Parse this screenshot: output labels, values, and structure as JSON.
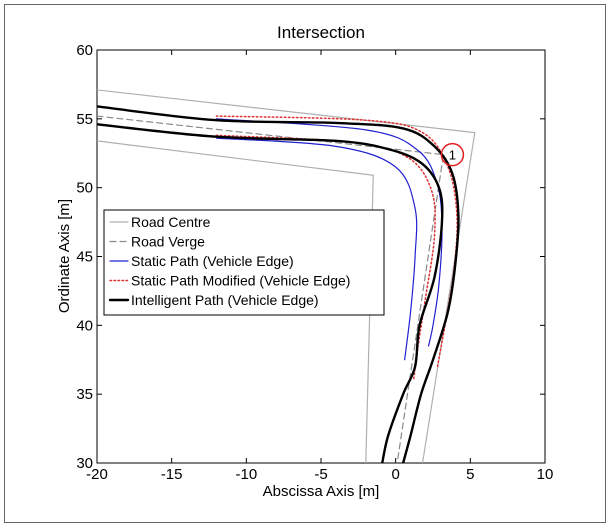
{
  "chart_data": {
    "type": "line",
    "title": "Intersection",
    "xlabel": "Abscissa Axis [m]",
    "ylabel": "Ordinate Axis [m]",
    "xlim": [
      -20,
      10
    ],
    "ylim": [
      30,
      60
    ],
    "xticks": [
      -20,
      -15,
      -10,
      -5,
      0,
      5,
      10
    ],
    "yticks": [
      30,
      35,
      40,
      45,
      50,
      55,
      60
    ],
    "grid": false,
    "legend_position": "left",
    "annotation": "1",
    "annotation_point": [
      3.8,
      52.4
    ],
    "series": [
      {
        "name": "Road Centre",
        "color": "#b0b0b0",
        "style": "solid",
        "lines": [
          [
            [
              -20,
              57.1
            ],
            [
              5.3,
              54
            ],
            [
              1.8,
              30
            ]
          ],
          [
            [
              -20,
              53.4
            ],
            [
              -1.5,
              50.9
            ],
            [
              -2,
              30
            ]
          ]
        ]
      },
      {
        "name": "Road Verge",
        "color": "#8a8a8a",
        "style": "dashed",
        "lines": [
          [
            [
              -20,
              55.2
            ],
            [
              3.2,
              52.4
            ],
            [
              0.1,
              30
            ]
          ]
        ]
      },
      {
        "name": "Static Path (Vehicle Edge)",
        "color": "#2020d0",
        "style": "solid",
        "lines": [
          [
            [
              -12,
              55
            ],
            [
              -2,
              54.2
            ],
            [
              1.5,
              52.7
            ],
            [
              2.8,
              50.2
            ],
            [
              3.1,
              47
            ],
            [
              2.9,
              43
            ],
            [
              2.5,
              40
            ],
            [
              2.2,
              38.5
            ]
          ],
          [
            [
              -12,
              53.6
            ],
            [
              -4,
              53
            ],
            [
              0,
              51.5
            ],
            [
              1.3,
              48.5
            ],
            [
              1.3,
              45
            ],
            [
              1.0,
              41
            ],
            [
              0.6,
              37.5
            ]
          ]
        ]
      },
      {
        "name": "Static Path Modified (Vehicle Edge)",
        "color": "#e03030",
        "style": "dotted",
        "lines": [
          [
            [
              -12,
              55.2
            ],
            [
              -2,
              54.9
            ],
            [
              1.8,
              54
            ],
            [
              3.5,
              51.5
            ],
            [
              4.1,
              48
            ],
            [
              3.9,
              44
            ],
            [
              3.3,
              40
            ],
            [
              2.8,
              37
            ]
          ],
          [
            [
              -12,
              53.8
            ],
            [
              -3,
              53.3
            ],
            [
              0.8,
              52.2
            ],
            [
              2.4,
              49.8
            ],
            [
              2.6,
              46.5
            ],
            [
              2.0,
              42
            ],
            [
              1.5,
              38.5
            ],
            [
              1.2,
              36
            ]
          ]
        ]
      },
      {
        "name": "Intelligent Path (Vehicle Edge)",
        "color": "#000000",
        "style": "solid",
        "lines": [
          [
            [
              -20,
              55.9
            ],
            [
              -12,
              54.9
            ],
            [
              -4,
              54.7
            ],
            [
              0.5,
              54.3
            ],
            [
              2.6,
              53
            ],
            [
              3.8,
              51
            ],
            [
              4.2,
              48
            ],
            [
              4.0,
              44.5
            ],
            [
              3.5,
              41
            ],
            [
              2.5,
              37.5
            ],
            [
              1.7,
              35
            ],
            [
              1.0,
              32
            ],
            [
              0.5,
              30
            ]
          ],
          [
            [
              -20,
              54.6
            ],
            [
              -12,
              53.7
            ],
            [
              -4,
              53.4
            ],
            [
              -0.5,
              52.8
            ],
            [
              1.7,
              51.8
            ],
            [
              2.9,
              50
            ],
            [
              3.1,
              47.5
            ],
            [
              2.6,
              43.5
            ],
            [
              1.6,
              40
            ],
            [
              1.3,
              37
            ],
            [
              0.5,
              35
            ],
            [
              -0.5,
              32
            ],
            [
              -0.9,
              30
            ]
          ]
        ]
      }
    ]
  }
}
